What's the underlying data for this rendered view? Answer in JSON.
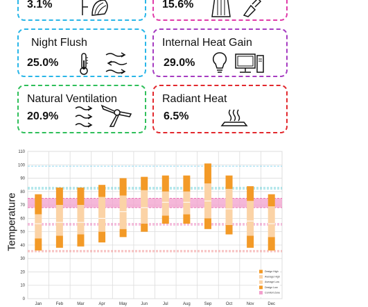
{
  "cards": [
    {
      "id": "cooling",
      "title": "",
      "value": "3.1%",
      "color": "#29b6e8"
    },
    {
      "id": "clothing",
      "title": "",
      "value": "15.6%",
      "color": "#e03aa8"
    },
    {
      "id": "night_flush",
      "title": "Night Flush",
      "value": "25.0%",
      "color": "#29b6e8"
    },
    {
      "id": "internal_heat",
      "title": "Internal Heat Gain",
      "value": "29.0%",
      "color": "#a63cc1"
    },
    {
      "id": "natural_vent",
      "title": "Natural Ventilation",
      "value": "20.9%",
      "color": "#2fbf5a"
    },
    {
      "id": "radiant_heat",
      "title": "Radiant Heat",
      "value": "6.5%",
      "color": "#e2282d"
    }
  ],
  "chart": {
    "ylabel": "Temperature"
  },
  "chart_data": {
    "type": "bar",
    "title": "",
    "xlabel": "",
    "ylabel": "Temperature",
    "ylim": [
      0,
      110
    ],
    "yticks": [
      0,
      10,
      20,
      30,
      40,
      50,
      60,
      70,
      80,
      90,
      100,
      110
    ],
    "categories": [
      "Jan",
      "Feb",
      "Mar",
      "Apr",
      "May",
      "Jun",
      "Jul",
      "Aug",
      "Sep",
      "Oct",
      "Nov",
      "Dec"
    ],
    "series": [
      {
        "name": "Design High",
        "values": [
          78,
          83,
          83,
          85,
          90,
          91,
          92,
          92,
          101,
          92,
          84,
          78
        ]
      },
      {
        "name": "Average High",
        "values": [
          63,
          70,
          70,
          76,
          77,
          81,
          80,
          80,
          86,
          82,
          73,
          69
        ]
      },
      {
        "name": "Average Low",
        "values": [
          45,
          47,
          48,
          50,
          52,
          56,
          62,
          63,
          60,
          55,
          47,
          46
        ]
      },
      {
        "name": "Design Low",
        "values": [
          36,
          38,
          39,
          42,
          46,
          50,
          56,
          56,
          52,
          48,
          38,
          36
        ]
      }
    ],
    "average_marks": [
      56,
      57,
      57,
      60,
      65,
      68,
      72,
      72,
      73,
      67,
      58,
      56
    ],
    "comfort_zone": [
      68,
      75
    ],
    "reference_lines": [
      {
        "value": 99,
        "color": "#7fd4ef"
      },
      {
        "value": 83,
        "color": "#3ec3cc"
      },
      {
        "value": 82,
        "color": "#3ec3cc"
      },
      {
        "value": 56,
        "color": "#e86ab0"
      },
      {
        "value": 55,
        "color": "#e86ab0"
      },
      {
        "value": 36,
        "color": "#f08a8a"
      },
      {
        "value": 35,
        "color": "#f08a8a"
      }
    ],
    "legend": {
      "placement": "bottom-right",
      "items": [
        {
          "label": "Design High",
          "color": "#f39a27"
        },
        {
          "label": "Average High",
          "color": "#fbd3a6"
        },
        {
          "label": "Average Low",
          "color": "#fbd3a6"
        },
        {
          "label": "Design Low",
          "color": "#f39a27"
        },
        {
          "label": "Comfort Zone",
          "color": "#f29fcc"
        }
      ]
    },
    "colors": {
      "design": "#f39a27",
      "average": "#fbd3a6",
      "comfort": "#f29fcc",
      "grid": "#dcdcdc"
    }
  }
}
